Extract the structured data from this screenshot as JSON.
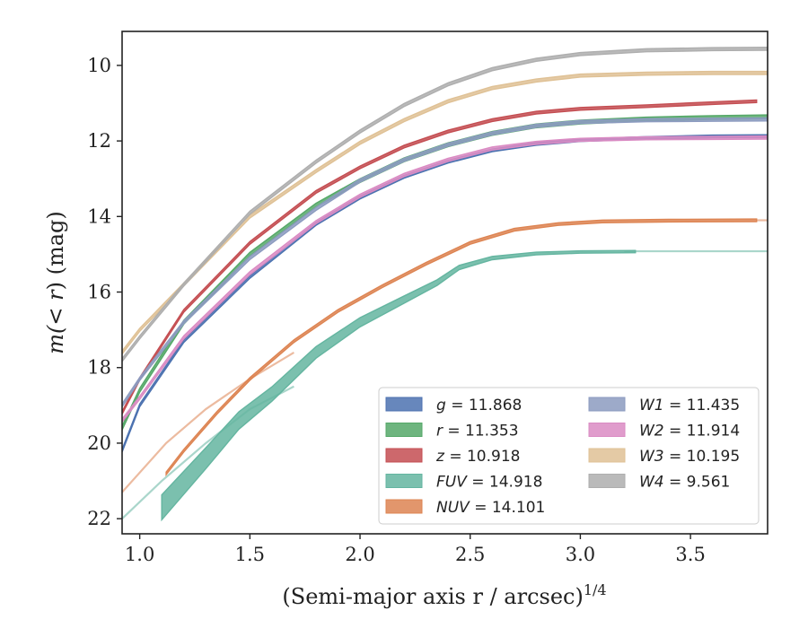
{
  "chart_data": {
    "type": "line",
    "xlabel": "(Semi-major axis r / arcsec)",
    "xlabel_exponent": "1/4",
    "ylabel_prefix": "m(",
    "ylabel_var": "< r",
    "ylabel_suffix": ") (mag)",
    "xlim": [
      0.92,
      3.85
    ],
    "ylim": [
      22.4,
      9.1
    ],
    "y_inverted": true,
    "xticks": [
      1.0,
      1.5,
      2.0,
      2.5,
      3.0,
      3.5
    ],
    "xtick_labels": [
      "1.0",
      "1.5",
      "2.0",
      "2.5",
      "3.0",
      "3.5"
    ],
    "yticks": [
      10,
      12,
      14,
      16,
      18,
      20,
      22
    ],
    "ytick_labels": [
      "10",
      "12",
      "14",
      "16",
      "18",
      "20",
      "22"
    ],
    "grid": false,
    "legend_position": "lower-right",
    "series": [
      {
        "name": "g = 11.868",
        "label_var": "g",
        "label_val": "11.868",
        "color": "#4c72b0",
        "x": [
          0.92,
          1.0,
          1.2,
          1.5,
          1.8,
          2.0,
          2.2,
          2.4,
          2.6,
          2.8,
          3.0,
          3.3,
          3.6,
          3.85
        ],
        "y": [
          20.2,
          19.0,
          17.3,
          15.6,
          14.2,
          13.5,
          12.95,
          12.55,
          12.25,
          12.08,
          11.98,
          11.92,
          11.88,
          11.87
        ],
        "w": 0.07
      },
      {
        "name": "r = 11.353",
        "label_var": "r",
        "label_val": "11.353",
        "color": "#55a868",
        "x": [
          0.92,
          1.0,
          1.2,
          1.5,
          1.8,
          2.0,
          2.2,
          2.4,
          2.6,
          2.8,
          3.0,
          3.3,
          3.6,
          3.85
        ],
        "y": [
          19.6,
          18.6,
          16.8,
          15.0,
          13.7,
          13.05,
          12.5,
          12.1,
          11.8,
          11.6,
          11.5,
          11.42,
          11.38,
          11.36
        ],
        "w": 0.1
      },
      {
        "name": "z = 10.918",
        "label_var": "z",
        "label_val": "10.918",
        "color": "#c44e52",
        "x": [
          0.92,
          1.0,
          1.2,
          1.5,
          1.8,
          2.0,
          2.2,
          2.4,
          2.6,
          2.8,
          3.0,
          3.3,
          3.6,
          3.8
        ],
        "y": [
          19.2,
          18.3,
          16.5,
          14.7,
          13.35,
          12.7,
          12.15,
          11.75,
          11.45,
          11.25,
          11.15,
          11.08,
          11.0,
          10.95
        ],
        "w": 0.07
      },
      {
        "name": "FUV = 14.918",
        "label_var": "FUV",
        "label_val": "14.918",
        "color": "#64b5a0",
        "x": [
          1.1,
          1.3,
          1.45,
          1.6,
          1.8,
          2.0,
          2.2,
          2.35,
          2.45,
          2.6,
          2.8,
          3.0,
          3.25
        ],
        "y": [
          21.7,
          20.4,
          19.4,
          18.7,
          17.6,
          16.8,
          16.2,
          15.75,
          15.35,
          15.1,
          14.98,
          14.94,
          14.93
        ],
        "w_start": 0.6,
        "w_end": 0.06,
        "faint": {
          "x": [
            0.92,
            1.1,
            1.3,
            1.5,
            1.7
          ],
          "y": [
            22.0,
            21.0,
            20.0,
            19.1,
            18.5
          ],
          "x2": [
            3.2,
            3.85
          ],
          "y2": [
            14.92,
            14.92
          ]
        }
      },
      {
        "name": "NUV = 14.101",
        "label_var": "NUV",
        "label_val": "14.101",
        "color": "#dd8452",
        "x": [
          1.12,
          1.2,
          1.35,
          1.5,
          1.7,
          1.9,
          2.1,
          2.3,
          2.5,
          2.7,
          2.9,
          3.1,
          3.4,
          3.8
        ],
        "y": [
          20.8,
          20.2,
          19.2,
          18.3,
          17.3,
          16.5,
          15.85,
          15.25,
          14.7,
          14.35,
          14.2,
          14.13,
          14.11,
          14.1
        ],
        "w": 0.07,
        "faint": {
          "x": [
            0.92,
            1.12,
            1.3,
            1.5,
            1.7
          ],
          "y": [
            21.3,
            20.0,
            19.1,
            18.3,
            17.6
          ],
          "x2": [
            3.8,
            3.85
          ],
          "y2": [
            14.1,
            14.1
          ]
        }
      },
      {
        "name": "W1 = 11.435",
        "label_var": "W1",
        "label_val": "11.435",
        "color": "#8c9bc0",
        "x": [
          0.92,
          1.0,
          1.2,
          1.5,
          1.8,
          2.0,
          2.2,
          2.4,
          2.6,
          2.8,
          3.0,
          3.3,
          3.6,
          3.85
        ],
        "y": [
          19.0,
          18.3,
          16.8,
          15.1,
          13.8,
          13.05,
          12.5,
          12.1,
          11.8,
          11.6,
          11.5,
          11.45,
          11.44,
          11.43
        ],
        "w": 0.08
      },
      {
        "name": "W2 = 11.914",
        "label_var": "W2",
        "label_val": "11.914",
        "color": "#da8bc3",
        "x": [
          0.92,
          1.0,
          1.2,
          1.5,
          1.8,
          2.0,
          2.2,
          2.4,
          2.6,
          2.8,
          3.0,
          3.3,
          3.6,
          3.85
        ],
        "y": [
          19.4,
          18.8,
          17.2,
          15.5,
          14.15,
          13.45,
          12.9,
          12.5,
          12.2,
          12.05,
          11.97,
          11.93,
          11.92,
          11.91
        ],
        "w": 0.08
      },
      {
        "name": "W3 = 10.195",
        "label_var": "W3",
        "label_val": "10.195",
        "color": "#dfc195",
        "x": [
          0.92,
          1.0,
          1.2,
          1.5,
          1.8,
          2.0,
          2.2,
          2.4,
          2.6,
          2.8,
          3.0,
          3.3,
          3.6,
          3.85
        ],
        "y": [
          17.6,
          17.0,
          15.8,
          14.0,
          12.8,
          12.05,
          11.45,
          10.95,
          10.6,
          10.4,
          10.27,
          10.22,
          10.2,
          10.2
        ],
        "w": 0.08
      },
      {
        "name": "W4 = 9.561",
        "label_var": "W4",
        "label_val": "9.561",
        "color": "#aeaeae",
        "x": [
          0.92,
          1.0,
          1.2,
          1.5,
          1.8,
          2.0,
          2.2,
          2.4,
          2.6,
          2.8,
          3.0,
          3.3,
          3.6,
          3.85
        ],
        "y": [
          17.8,
          17.2,
          15.8,
          13.9,
          12.55,
          11.75,
          11.05,
          10.5,
          10.1,
          9.85,
          9.7,
          9.6,
          9.57,
          9.56
        ],
        "w": 0.08
      }
    ]
  }
}
